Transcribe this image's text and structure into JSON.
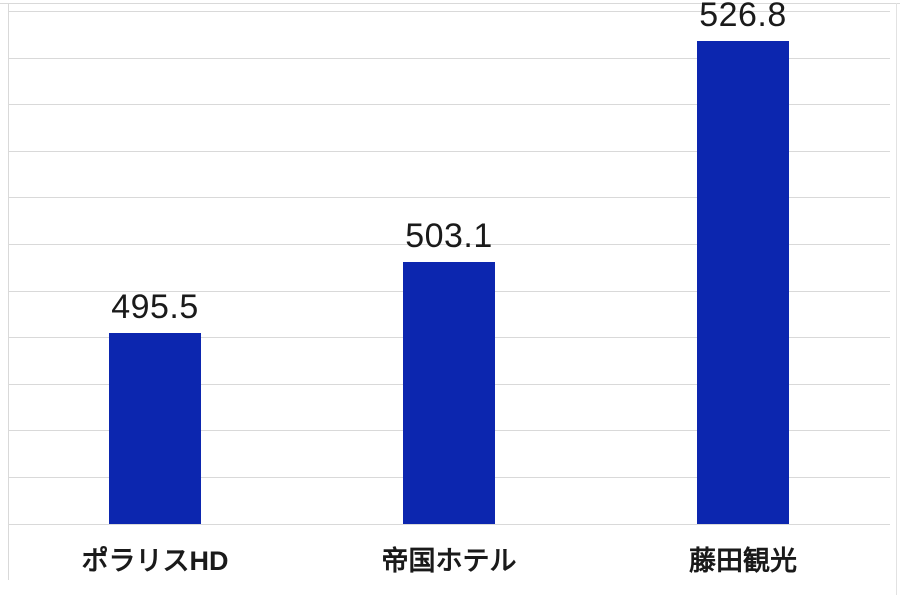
{
  "chart_data": {
    "type": "bar",
    "title": "",
    "xlabel": "",
    "ylabel": "",
    "categories": [
      "ポラリスHD",
      "帝国ホテル",
      "藤田観光"
    ],
    "values": [
      495.5,
      503.1,
      526.8
    ],
    "data_labels": [
      "495.5",
      "503.1",
      "526.8"
    ],
    "ylim": [
      475,
      530
    ],
    "ytick_step": 5,
    "ytick_labels_visible": false,
    "grid": true,
    "gridline_count": 12,
    "legend": false,
    "colors": {
      "bar": "#0C26AF",
      "gridline": "#D9D9D9",
      "frame": "#E2E2E2",
      "text": "#1A1A1A",
      "background": "#FFFFFF"
    }
  }
}
